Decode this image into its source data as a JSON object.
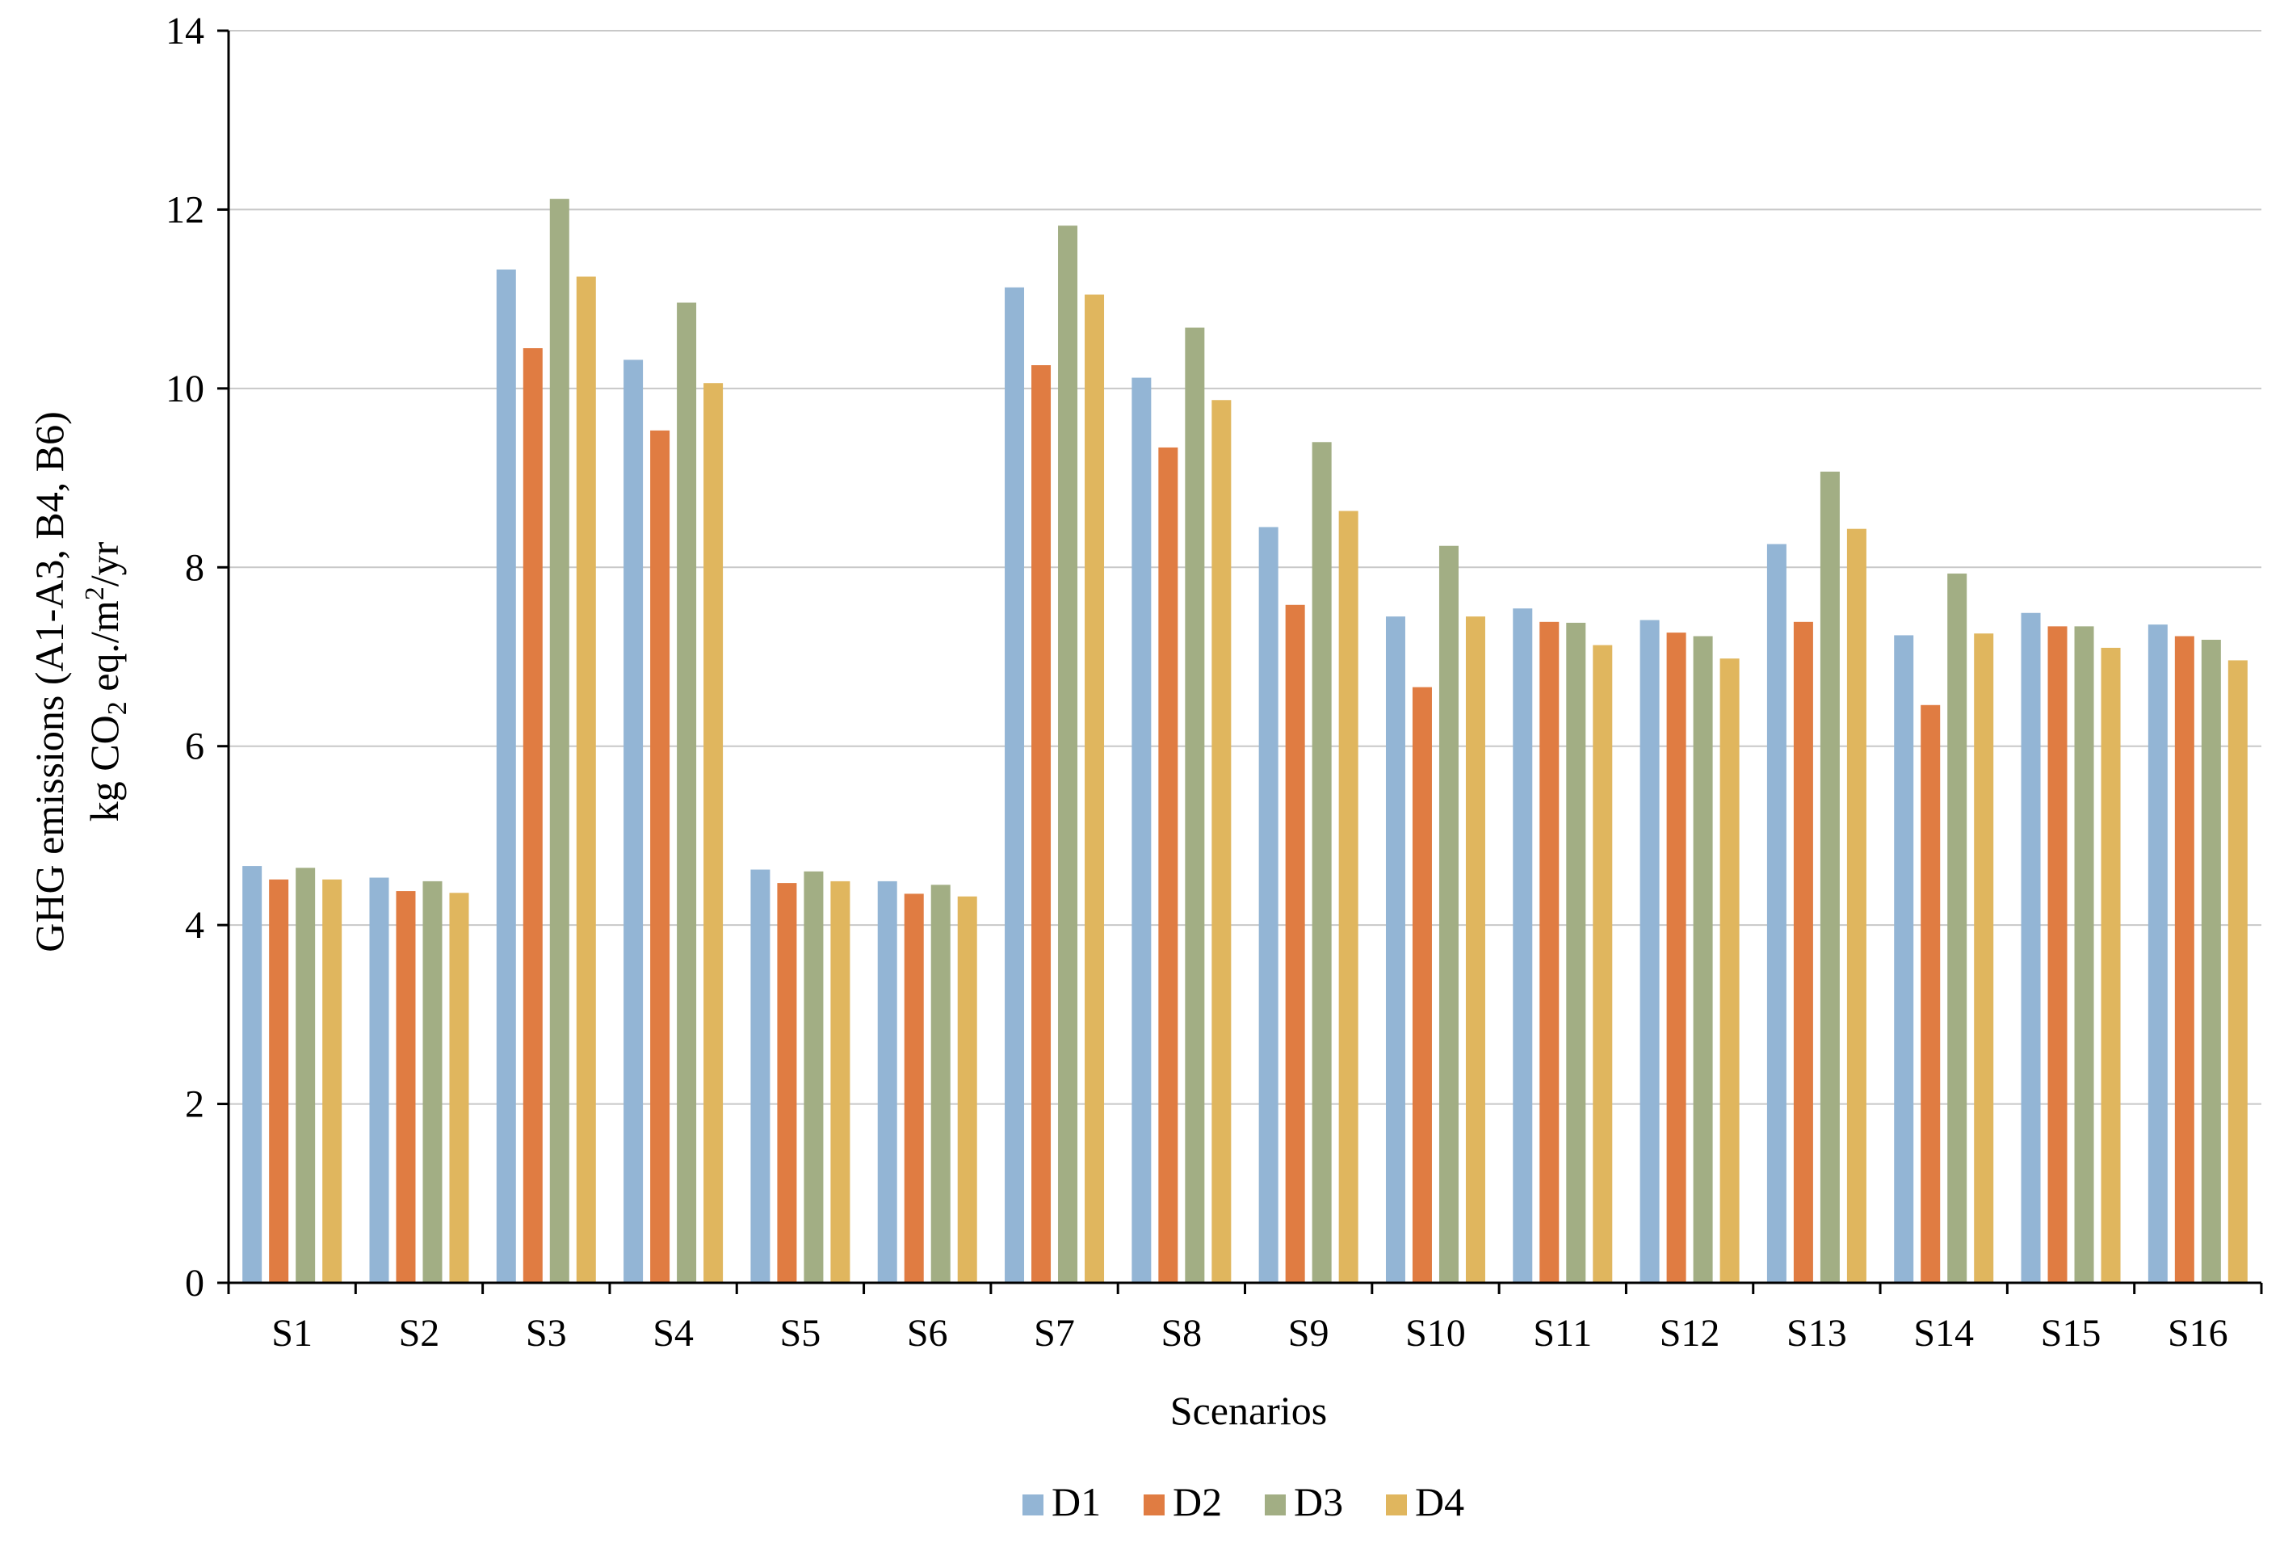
{
  "chart_data": {
    "type": "bar",
    "title": "",
    "xlabel": "Scenarios",
    "ylabel_line1": "GHG emissions  (A1-A3, B4, B6)",
    "ylabel_line2_prefix": "kg CO",
    "ylabel_line2_sub": "2",
    "ylabel_line2_mid": " eq./m",
    "ylabel_line2_sup": "2",
    "ylabel_line2_suffix": "/yr",
    "ylim": [
      0,
      14
    ],
    "yticks": [
      0,
      2,
      4,
      6,
      8,
      10,
      12,
      14
    ],
    "grid": true,
    "legend_position": "bottom",
    "categories": [
      "S1",
      "S2",
      "S3",
      "S4",
      "S5",
      "S6",
      "S7",
      "S8",
      "S9",
      "S10",
      "S11",
      "S12",
      "S13",
      "S14",
      "S15",
      "S16"
    ],
    "series": [
      {
        "name": "D1",
        "color": "#93b5d5",
        "values": [
          4.66,
          4.53,
          11.33,
          10.32,
          4.62,
          4.49,
          11.13,
          10.12,
          8.45,
          7.45,
          7.54,
          7.41,
          8.26,
          7.24,
          7.49,
          7.36
        ]
      },
      {
        "name": "D2",
        "color": "#e07c42",
        "values": [
          4.51,
          4.38,
          10.45,
          9.53,
          4.47,
          4.35,
          10.26,
          9.34,
          7.58,
          6.66,
          7.39,
          7.27,
          7.39,
          6.46,
          7.34,
          7.23
        ]
      },
      {
        "name": "D3",
        "color": "#a2ae84",
        "values": [
          4.64,
          4.49,
          12.12,
          10.96,
          4.6,
          4.45,
          11.82,
          10.68,
          9.4,
          8.24,
          7.38,
          7.23,
          9.07,
          7.93,
          7.34,
          7.19
        ]
      },
      {
        "name": "D4",
        "color": "#e0b65e",
        "values": [
          4.51,
          4.36,
          11.25,
          10.06,
          4.49,
          4.32,
          11.05,
          9.87,
          8.63,
          7.45,
          7.13,
          6.98,
          8.43,
          7.26,
          7.1,
          6.96
        ]
      }
    ]
  }
}
